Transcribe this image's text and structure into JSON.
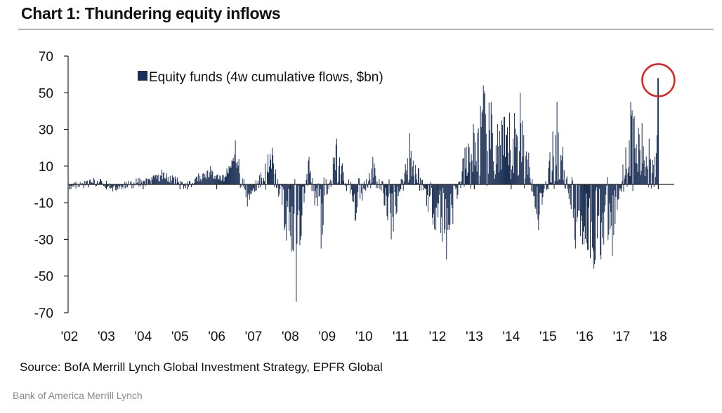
{
  "title": "Chart 1: Thundering equity inflows",
  "source": "Source: BofA Merrill Lynch Global Investment Strategy, EPFR Global",
  "credit": "Bank of America Merrill Lynch",
  "colors": {
    "bar": "#1a2f55",
    "highlight": "#e02020",
    "axis": "#222222",
    "rule": "#44546a"
  },
  "chart_data": {
    "type": "bar",
    "title": "Chart 1: Thundering equity inflows",
    "xlabel": "",
    "ylabel": "",
    "ylim": [
      -70,
      70
    ],
    "yticks": [
      70,
      50,
      30,
      10,
      -10,
      -30,
      -50,
      -70
    ],
    "xticks": [
      "'02",
      "'03",
      "'04",
      "'05",
      "'06",
      "'07",
      "'08",
      "'09",
      "'10",
      "'11",
      "'12",
      "'13",
      "'14",
      "'15",
      "'16",
      "'17",
      "'18"
    ],
    "grid": false,
    "legend_position": "top-left",
    "highlight": "latest value (circled)",
    "series": [
      {
        "name": "Equity funds (4w cumulative flows, $bn)",
        "anchors": [
          [
            "'02",
            0
          ],
          [
            "'02",
            2
          ],
          [
            "'03",
            -3
          ],
          [
            "'03",
            1
          ],
          [
            "'04",
            3
          ],
          [
            "'04",
            8
          ],
          [
            "'04",
            4
          ],
          [
            "'05",
            -2
          ],
          [
            "'05",
            6
          ],
          [
            "'05",
            10
          ],
          [
            "'06",
            5
          ],
          [
            "'06",
            24
          ],
          [
            "'06",
            -12
          ],
          [
            "'07",
            5
          ],
          [
            "'07",
            20
          ],
          [
            "'07",
            -25
          ],
          [
            "'08",
            -64
          ],
          [
            "'08",
            15
          ],
          [
            "'08",
            -35
          ],
          [
            "'09",
            25
          ],
          [
            "'09",
            -20
          ],
          [
            "'10",
            15
          ],
          [
            "'10",
            -30
          ],
          [
            "'11",
            28
          ],
          [
            "'11",
            -15
          ],
          [
            "'12",
            -41
          ],
          [
            "'12",
            20
          ],
          [
            "'13",
            54
          ],
          [
            "'13",
            35
          ],
          [
            "'14",
            50
          ],
          [
            "'14",
            -25
          ],
          [
            "'15",
            45
          ],
          [
            "'15",
            -35
          ],
          [
            "'16",
            -46
          ],
          [
            "'16",
            -39
          ],
          [
            "'17",
            45
          ],
          [
            "'17",
            25
          ],
          [
            "'18",
            58
          ]
        ],
        "last_value": 58
      }
    ]
  }
}
